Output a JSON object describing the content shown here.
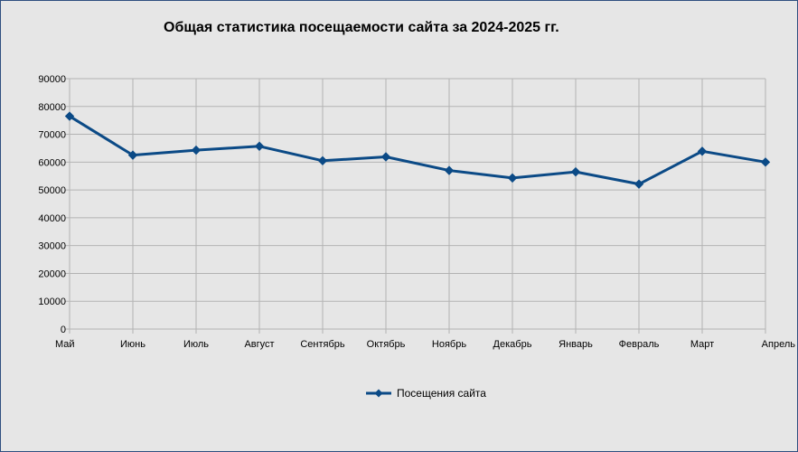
{
  "chart_data": {
    "type": "line",
    "title": "Общая статистика посещаемости сайта за 2024-2025 гг.",
    "categories": [
      "Май",
      "Июнь",
      "Июль",
      "Август",
      "Сентябрь",
      "Октябрь",
      "Ноябрь",
      "Декабрь",
      "Январь",
      "Февраль",
      "Март",
      "Апрель"
    ],
    "series": [
      {
        "name": "Посещения сайта",
        "color": "#0b4a86",
        "marker": "diamond",
        "values": [
          76500,
          62500,
          64300,
          65700,
          60500,
          61900,
          57000,
          54300,
          56500,
          52100,
          63900,
          60000
        ]
      }
    ],
    "ylim": [
      0,
      90000
    ],
    "yticks": [
      0,
      10000,
      20000,
      30000,
      40000,
      50000,
      60000,
      70000,
      80000,
      90000
    ],
    "grid": true,
    "legend_position": "bottom"
  }
}
